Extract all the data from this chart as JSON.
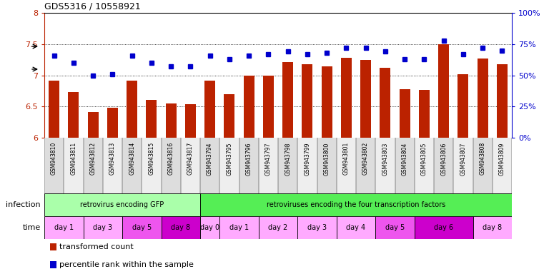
{
  "title": "GDS5316 / 10558921",
  "samples": [
    "GSM943810",
    "GSM943811",
    "GSM943812",
    "GSM943813",
    "GSM943814",
    "GSM943815",
    "GSM943816",
    "GSM943817",
    "GSM943794",
    "GSM943795",
    "GSM943796",
    "GSM943797",
    "GSM943798",
    "GSM943799",
    "GSM943800",
    "GSM943801",
    "GSM943802",
    "GSM943803",
    "GSM943804",
    "GSM943805",
    "GSM943806",
    "GSM943807",
    "GSM943808",
    "GSM943809"
  ],
  "bar_values": [
    6.92,
    6.73,
    6.41,
    6.48,
    6.92,
    6.61,
    6.55,
    6.54,
    6.92,
    6.7,
    7.0,
    7.0,
    7.21,
    7.18,
    7.14,
    7.28,
    7.25,
    7.12,
    6.78,
    6.77,
    7.5,
    7.02,
    7.27,
    7.18
  ],
  "blue_values_pct": [
    66,
    60,
    50,
    51,
    66,
    60,
    57,
    57,
    66,
    63,
    66,
    67,
    69,
    67,
    68,
    72,
    72,
    69,
    63,
    63,
    78,
    67,
    72,
    70
  ],
  "ylim": [
    6.0,
    8.0
  ],
  "yticks_left": [
    6.0,
    6.5,
    7.0,
    7.5,
    8.0
  ],
  "ytick_labels_left": [
    "6",
    "6.5",
    "7",
    "7.5",
    "8"
  ],
  "yticks_right_pct": [
    0,
    25,
    50,
    75,
    100
  ],
  "ytick_labels_right": [
    "0%",
    "25%",
    "50%",
    "75%",
    "100%"
  ],
  "bar_color": "#bb2200",
  "blue_color": "#0000cc",
  "grid_color": "#000000",
  "infection_groups": [
    {
      "label": "retrovirus encoding GFP",
      "start": 0,
      "end": 8,
      "color": "#aaffaa"
    },
    {
      "label": "retroviruses encoding the four transcription factors",
      "start": 8,
      "end": 24,
      "color": "#55ee55"
    }
  ],
  "time_groups": [
    {
      "label": "day 1",
      "start": 0,
      "end": 2,
      "color": "#ffaaff"
    },
    {
      "label": "day 3",
      "start": 2,
      "end": 4,
      "color": "#ffaaff"
    },
    {
      "label": "day 5",
      "start": 4,
      "end": 6,
      "color": "#ee55ee"
    },
    {
      "label": "day 8",
      "start": 6,
      "end": 8,
      "color": "#cc00cc"
    },
    {
      "label": "day 0",
      "start": 8,
      "end": 9,
      "color": "#ffaaff"
    },
    {
      "label": "day 1",
      "start": 9,
      "end": 11,
      "color": "#ffaaff"
    },
    {
      "label": "day 2",
      "start": 11,
      "end": 13,
      "color": "#ffaaff"
    },
    {
      "label": "day 3",
      "start": 13,
      "end": 15,
      "color": "#ffaaff"
    },
    {
      "label": "day 4",
      "start": 15,
      "end": 17,
      "color": "#ffaaff"
    },
    {
      "label": "day 5",
      "start": 17,
      "end": 19,
      "color": "#ee55ee"
    },
    {
      "label": "day 6",
      "start": 19,
      "end": 22,
      "color": "#cc00cc"
    },
    {
      "label": "day 8",
      "start": 22,
      "end": 24,
      "color": "#ffaaff"
    }
  ],
  "legend": [
    {
      "color": "#bb2200",
      "label": "transformed count"
    },
    {
      "color": "#0000cc",
      "label": "percentile rank within the sample"
    }
  ],
  "xticklabel_bg_even": "#dddddd",
  "xticklabel_bg_odd": "#eeeeee"
}
